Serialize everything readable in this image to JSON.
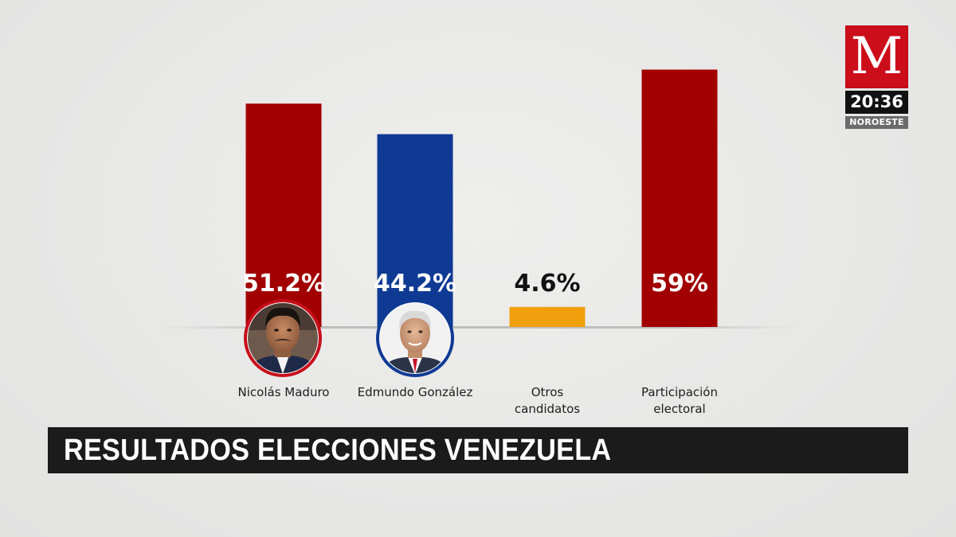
{
  "brand": {
    "logo_letter": "M",
    "time": "20:36",
    "region": "NOROESTE",
    "brand_color": "#cc0d1a"
  },
  "banner": {
    "title": "RESULTADOS ELECCIONES VENEZUELA"
  },
  "chart_data": {
    "type": "bar",
    "categories": [
      "Nicolás Maduro",
      "Edmundo González",
      "Otros candidatos",
      "Participación electoral"
    ],
    "values": [
      51.2,
      44.2,
      4.6,
      59
    ],
    "value_labels": [
      "51.2%",
      "44.2%",
      "4.6%",
      "59%"
    ],
    "label_lines": [
      [
        "Nicolás Maduro"
      ],
      [
        "Edmundo González"
      ],
      [
        "Otros",
        "candidatos"
      ],
      [
        "Participación",
        "electoral"
      ]
    ],
    "colors": [
      "#a20000",
      "#0f3a94",
      "#f0a00c",
      "#a20000"
    ],
    "value_label_colors": [
      "#ffffff",
      "#ffffff",
      "#111111",
      "#ffffff"
    ],
    "avatars": [
      {
        "name": "maduro-avatar",
        "ring_color": "#c60f1b",
        "description_icon": "portrait-icon"
      },
      {
        "name": "gonzalez-avatar",
        "ring_color": "#0f3a94",
        "description_icon": "portrait-icon"
      },
      null,
      null
    ],
    "ylim": [
      0,
      60
    ],
    "title": "",
    "xlabel": "",
    "ylabel": "",
    "unit": "%",
    "grid": false,
    "legend": "none"
  }
}
